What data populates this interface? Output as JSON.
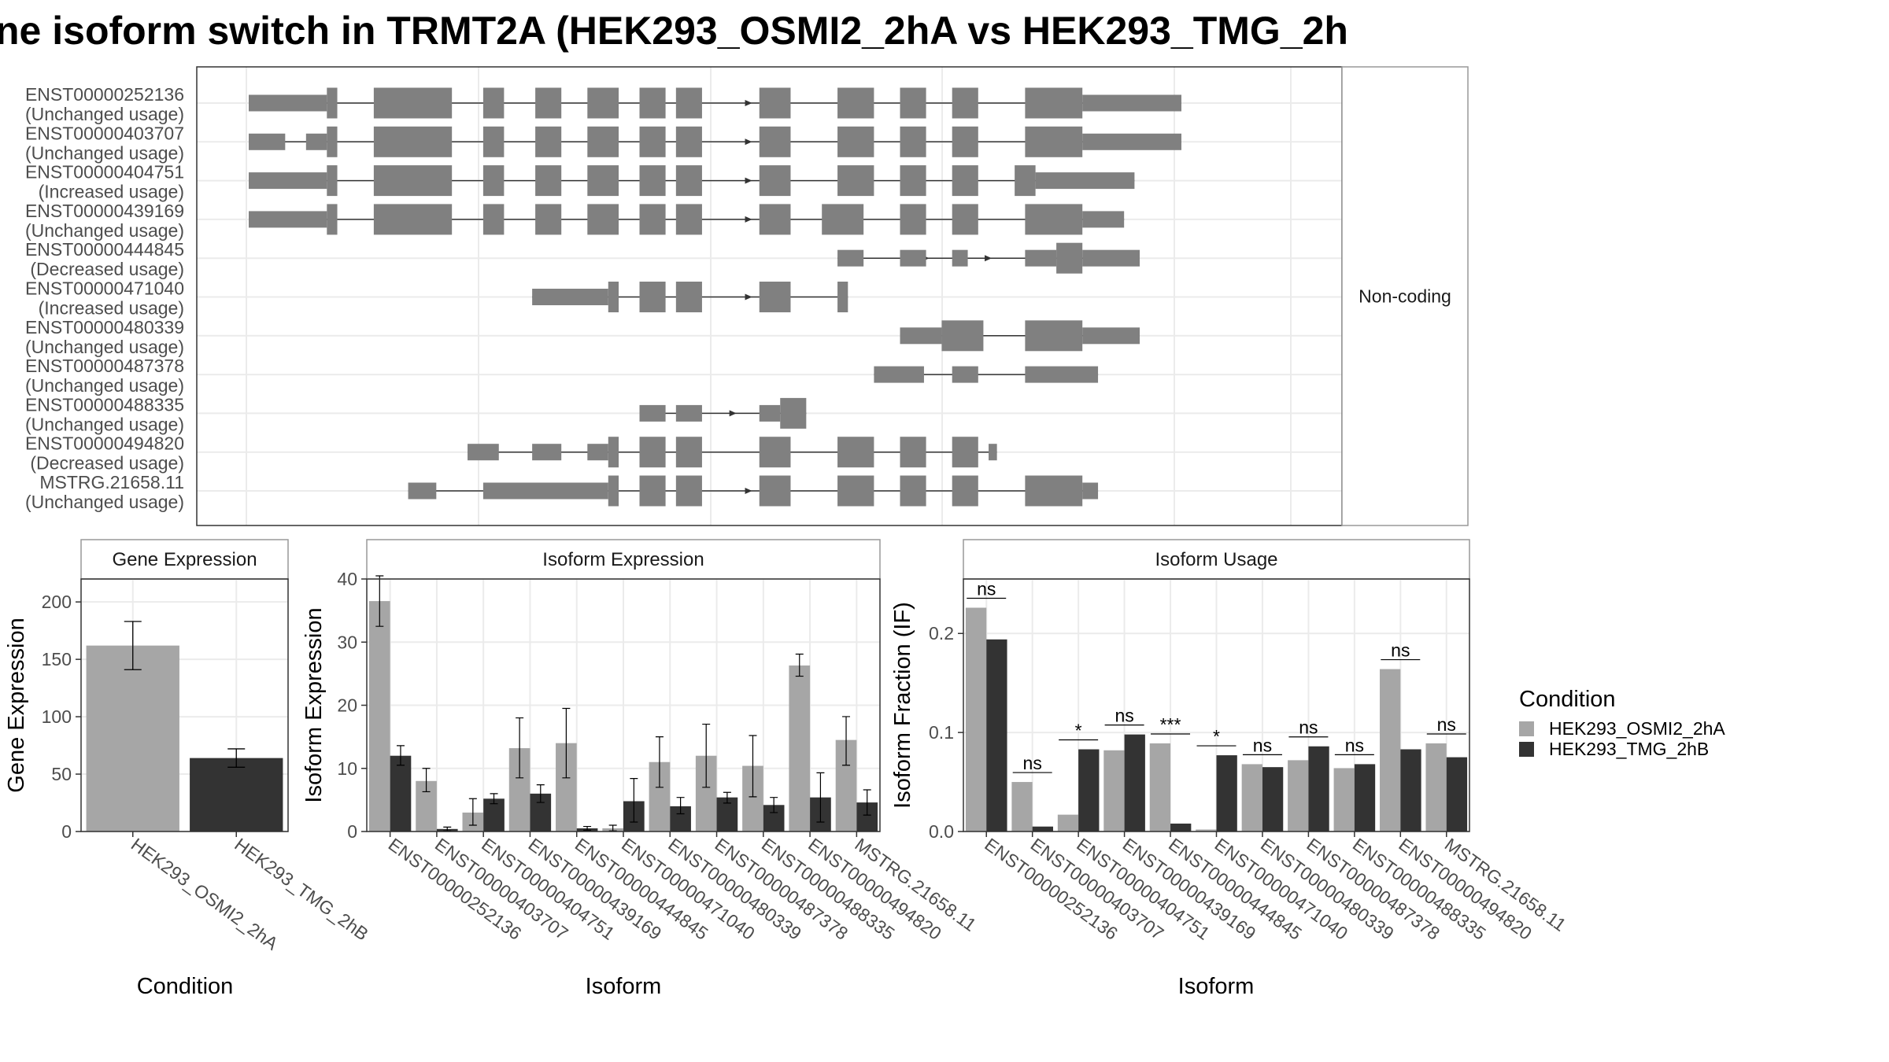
{
  "title": "ne isoform switch in TRMT2A (HEK293_OSMI2_2hA vs HEK293_TMG_2h",
  "colors": {
    "osmi": "#a6a6a6",
    "tmg": "#333333",
    "exon": "#808080",
    "panel_border": "#333333",
    "grid": "#ebebeb",
    "strip_border": "#999999"
  },
  "structure_panel": {
    "facet_label": "Non-coding",
    "coord_range": [
      0,
      1000
    ],
    "transcripts": [
      {
        "id": "ENST00000252136",
        "usage": "(Unchanged usage)",
        "arrows": [
          480
        ],
        "exons": [
          [
            0,
            75,
            "s"
          ],
          [
            75,
            85,
            "t"
          ],
          [
            120,
            195,
            "t"
          ],
          [
            225,
            245,
            "t"
          ],
          [
            275,
            300,
            "t"
          ],
          [
            325,
            355,
            "t"
          ],
          [
            375,
            400,
            "t"
          ],
          [
            410,
            435,
            "t"
          ],
          [
            490,
            520,
            "t"
          ],
          [
            565,
            600,
            "t"
          ],
          [
            625,
            650,
            "t"
          ],
          [
            675,
            700,
            "t"
          ],
          [
            745,
            800,
            "t"
          ],
          [
            800,
            895,
            "s"
          ]
        ]
      },
      {
        "id": "ENST00000403707",
        "usage": "(Unchanged usage)",
        "arrows": [
          480
        ],
        "exons": [
          [
            0,
            35,
            "s"
          ],
          [
            55,
            75,
            "s"
          ],
          [
            75,
            85,
            "t"
          ],
          [
            120,
            195,
            "t"
          ],
          [
            225,
            245,
            "t"
          ],
          [
            275,
            300,
            "t"
          ],
          [
            325,
            355,
            "t"
          ],
          [
            375,
            400,
            "t"
          ],
          [
            410,
            435,
            "t"
          ],
          [
            490,
            520,
            "t"
          ],
          [
            565,
            600,
            "t"
          ],
          [
            625,
            650,
            "t"
          ],
          [
            675,
            700,
            "t"
          ],
          [
            745,
            800,
            "t"
          ],
          [
            800,
            895,
            "s"
          ]
        ]
      },
      {
        "id": "ENST00000404751",
        "usage": "(Increased usage)",
        "arrows": [
          480
        ],
        "exons": [
          [
            0,
            75,
            "s"
          ],
          [
            75,
            85,
            "t"
          ],
          [
            120,
            195,
            "t"
          ],
          [
            225,
            245,
            "t"
          ],
          [
            275,
            300,
            "t"
          ],
          [
            325,
            355,
            "t"
          ],
          [
            375,
            400,
            "t"
          ],
          [
            410,
            435,
            "t"
          ],
          [
            490,
            520,
            "t"
          ],
          [
            565,
            600,
            "t"
          ],
          [
            625,
            650,
            "t"
          ],
          [
            675,
            700,
            "t"
          ],
          [
            735,
            755,
            "t"
          ],
          [
            755,
            850,
            "s"
          ]
        ]
      },
      {
        "id": "ENST00000439169",
        "usage": "(Unchanged usage)",
        "arrows": [
          480
        ],
        "exons": [
          [
            0,
            75,
            "s"
          ],
          [
            75,
            85,
            "t"
          ],
          [
            120,
            195,
            "t"
          ],
          [
            225,
            245,
            "t"
          ],
          [
            275,
            300,
            "t"
          ],
          [
            325,
            355,
            "t"
          ],
          [
            375,
            400,
            "t"
          ],
          [
            410,
            435,
            "t"
          ],
          [
            490,
            520,
            "t"
          ],
          [
            550,
            590,
            "t"
          ],
          [
            625,
            650,
            "t"
          ],
          [
            675,
            700,
            "t"
          ],
          [
            745,
            800,
            "t"
          ],
          [
            800,
            840,
            "s"
          ]
        ]
      },
      {
        "id": "ENST00000444845",
        "usage": "(Decreased usage)",
        "arrows": [
          650,
          710
        ],
        "exons": [
          [
            565,
            590,
            "s"
          ],
          [
            625,
            650,
            "s"
          ],
          [
            675,
            690,
            "s"
          ],
          [
            745,
            775,
            "s"
          ],
          [
            775,
            800,
            "t"
          ],
          [
            800,
            855,
            "s"
          ]
        ]
      },
      {
        "id": "ENST00000471040",
        "usage": "(Increased usage)",
        "arrows": [
          480
        ],
        "exons": [
          [
            272,
            345,
            "s"
          ],
          [
            345,
            355,
            "t"
          ],
          [
            375,
            400,
            "t"
          ],
          [
            410,
            435,
            "t"
          ],
          [
            490,
            520,
            "t"
          ],
          [
            565,
            575,
            "t"
          ]
        ]
      },
      {
        "id": "ENST00000480339",
        "usage": "(Unchanged usage)",
        "arrows": [],
        "exons": [
          [
            625,
            665,
            "s"
          ],
          [
            665,
            705,
            "t"
          ],
          [
            745,
            800,
            "t"
          ],
          [
            800,
            855,
            "s"
          ]
        ]
      },
      {
        "id": "ENST00000487378",
        "usage": "(Unchanged usage)",
        "arrows": [],
        "exons": [
          [
            600,
            648,
            "s"
          ],
          [
            675,
            700,
            "s"
          ],
          [
            745,
            815,
            "s"
          ]
        ]
      },
      {
        "id": "ENST00000488335",
        "usage": "(Unchanged usage)",
        "arrows": [
          465
        ],
        "exons": [
          [
            375,
            400,
            "s"
          ],
          [
            410,
            435,
            "s"
          ],
          [
            490,
            510,
            "s"
          ],
          [
            510,
            535,
            "t"
          ]
        ]
      },
      {
        "id": "ENST00000494820",
        "usage": "(Decreased usage)",
        "arrows": [],
        "exons": [
          [
            210,
            240,
            "s"
          ],
          [
            272,
            300,
            "s"
          ],
          [
            325,
            345,
            "s"
          ],
          [
            345,
            355,
            "t"
          ],
          [
            375,
            400,
            "t"
          ],
          [
            410,
            435,
            "t"
          ],
          [
            490,
            520,
            "t"
          ],
          [
            565,
            600,
            "t"
          ],
          [
            625,
            650,
            "t"
          ],
          [
            675,
            700,
            "t"
          ],
          [
            710,
            718,
            "s"
          ]
        ]
      },
      {
        "id": "MSTRG.21658.11",
        "usage": "(Unchanged usage)",
        "arrows": [
          480
        ],
        "exons": [
          [
            153,
            180,
            "s"
          ],
          [
            225,
            345,
            "s"
          ],
          [
            345,
            355,
            "t"
          ],
          [
            375,
            400,
            "t"
          ],
          [
            410,
            435,
            "t"
          ],
          [
            490,
            520,
            "t"
          ],
          [
            565,
            600,
            "t"
          ],
          [
            625,
            650,
            "t"
          ],
          [
            675,
            700,
            "t"
          ],
          [
            745,
            800,
            "t"
          ],
          [
            800,
            815,
            "s"
          ]
        ]
      }
    ]
  },
  "chart_data": [
    {
      "type": "bar",
      "facet": "Gene Expression",
      "xlabel": "Condition",
      "ylabel": "Gene Expression",
      "ylim": [
        0,
        220
      ],
      "yticks": [
        0,
        50,
        100,
        150,
        200
      ],
      "categories": [
        "HEK293_OSMI2_2hA",
        "HEK293_TMG_2hB"
      ],
      "values": [
        162,
        64
      ],
      "errors": [
        [
          141,
          183
        ],
        [
          56,
          72
        ]
      ]
    },
    {
      "type": "bar",
      "facet": "Isoform Expression",
      "xlabel": "Isoform",
      "ylabel": "Isoform Expression",
      "ylim": [
        0,
        40
      ],
      "yticks": [
        0,
        10,
        20,
        30,
        40
      ],
      "categories": [
        "ENST00000252136",
        "ENST00000403707",
        "ENST00000404751",
        "ENST00000439169",
        "ENST00000444845",
        "ENST00000471040",
        "ENST00000480339",
        "ENST00000487378",
        "ENST00000488335",
        "ENST00000494820",
        "MSTRG.21658.11"
      ],
      "series": [
        {
          "name": "HEK293_OSMI2_2hA",
          "values": [
            36.5,
            8.0,
            3.0,
            13.2,
            14.0,
            0.5,
            11.0,
            12.0,
            10.4,
            26.3,
            14.5
          ],
          "errors": [
            [
              32.5,
              40.5
            ],
            [
              6.3,
              10.0
            ],
            [
              1.0,
              5.2
            ],
            [
              8.5,
              18.0
            ],
            [
              8.5,
              19.5
            ],
            [
              0.1,
              1.0
            ],
            [
              7.0,
              15.0
            ],
            [
              7.0,
              17.0
            ],
            [
              5.5,
              15.2
            ],
            [
              24.6,
              28.1
            ],
            [
              10.5,
              18.2
            ]
          ]
        },
        {
          "name": "HEK293_TMG_2hB",
          "values": [
            12.0,
            0.4,
            5.2,
            6.0,
            0.5,
            4.8,
            4.0,
            5.4,
            4.2,
            5.4,
            4.6
          ],
          "errors": [
            [
              10.5,
              13.6
            ],
            [
              0.1,
              0.7
            ],
            [
              4.4,
              6.0
            ],
            [
              4.6,
              7.4
            ],
            [
              0.2,
              0.8
            ],
            [
              1.5,
              8.4
            ],
            [
              2.8,
              5.4
            ],
            [
              4.5,
              6.2
            ],
            [
              3.0,
              5.4
            ],
            [
              1.5,
              9.3
            ],
            [
              2.6,
              6.6
            ]
          ]
        }
      ]
    },
    {
      "type": "bar",
      "facet": "Isoform Usage",
      "xlabel": "Isoform",
      "ylabel": "Isoform Fraction (IF)",
      "ylim": [
        0,
        0.255
      ],
      "yticks": [
        0.0,
        0.1,
        0.2
      ],
      "ytick_labels": [
        "0.0",
        "0.1",
        "0.2"
      ],
      "categories": [
        "ENST00000252136",
        "ENST00000403707",
        "ENST00000404751",
        "ENST00000439169",
        "ENST00000444845",
        "ENST00000471040",
        "ENST00000480339",
        "ENST00000487378",
        "ENST00000488335",
        "ENST00000494820",
        "MSTRG.21658.11"
      ],
      "series": [
        {
          "name": "HEK293_OSMI2_2hA",
          "values": [
            0.226,
            0.05,
            0.017,
            0.082,
            0.089,
            0.002,
            0.068,
            0.072,
            0.064,
            0.164,
            0.089
          ]
        },
        {
          "name": "HEK293_TMG_2hB",
          "values": [
            0.194,
            0.005,
            0.083,
            0.098,
            0.008,
            0.077,
            0.065,
            0.086,
            0.068,
            0.083,
            0.075
          ]
        }
      ],
      "significance": [
        "ns",
        "ns",
        "*",
        "ns",
        "***",
        "*",
        "ns",
        "ns",
        "ns",
        "ns",
        "ns"
      ]
    }
  ],
  "legend": {
    "title": "Condition",
    "items": [
      "HEK293_OSMI2_2hA",
      "HEK293_TMG_2hB"
    ]
  }
}
